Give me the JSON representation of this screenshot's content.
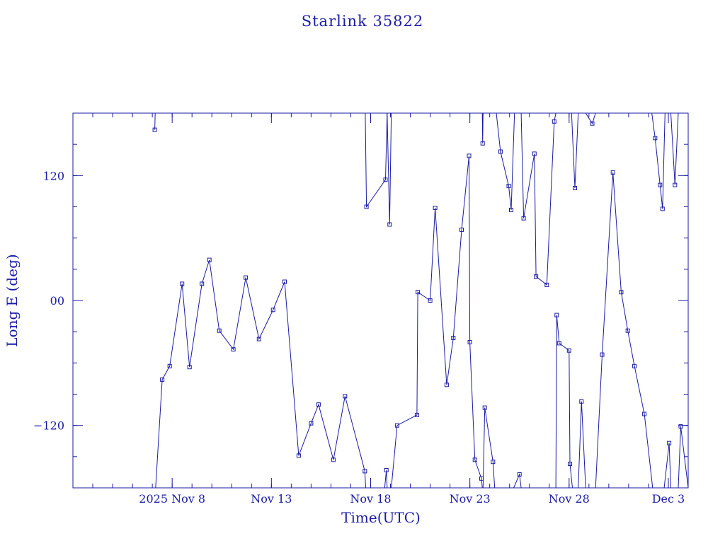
{
  "chart_data": {
    "type": "line",
    "title": "Starlink 35822",
    "xlabel": "Time(UTC)",
    "ylabel": "Long E (deg)",
    "xlim": [
      "2025-11-03T00:00",
      "2025-12-04T00:00"
    ],
    "ylim": [
      -180,
      180
    ],
    "x_ticks": [
      {
        "t": "2025-11-08T00:00",
        "label": "2025 Nov  8"
      },
      {
        "t": "2025-11-13T00:00",
        "label": "Nov 13"
      },
      {
        "t": "2025-11-18T00:00",
        "label": "Nov 18"
      },
      {
        "t": "2025-11-23T00:00",
        "label": "Nov 23"
      },
      {
        "t": "2025-11-28T00:00",
        "label": "Nov 28"
      },
      {
        "t": "2025-12-03T00:00",
        "label": "Dec  3"
      }
    ],
    "y_ticks": [
      {
        "value": 120,
        "label": "120"
      },
      {
        "value": 0,
        "label": "00"
      },
      {
        "value": -120,
        "label": "−120"
      }
    ],
    "color": "#1a1aa6",
    "grid": false,
    "series": [
      {
        "points": [
          [
            "2025-11-07T03:00",
            164
          ],
          [
            "2025-11-07T03:30",
            180
          ]
        ]
      },
      {
        "points": [
          [
            "2025-11-07T04:00",
            -180
          ],
          [
            "2025-11-07T12:00",
            -76
          ],
          [
            "2025-11-07T21:00",
            -63
          ],
          [
            "2025-11-08T12:00",
            16
          ],
          [
            "2025-11-08T21:00",
            -64
          ],
          [
            "2025-11-09T12:00",
            16
          ],
          [
            "2025-11-09T21:00",
            39
          ],
          [
            "2025-11-10T09:00",
            -29
          ],
          [
            "2025-11-11T02:00",
            -47
          ],
          [
            "2025-11-11T17:00",
            22
          ],
          [
            "2025-11-12T09:00",
            -37
          ],
          [
            "2025-11-13T02:00",
            -9
          ],
          [
            "2025-11-13T16:00",
            18
          ],
          [
            "2025-11-14T09:00",
            -149
          ],
          [
            "2025-11-15T00:00",
            -118
          ],
          [
            "2025-11-15T09:00",
            -100
          ],
          [
            "2025-11-16T03:00",
            -153
          ],
          [
            "2025-11-16T17:00",
            -92
          ],
          [
            "2025-11-17T17:00",
            -164
          ],
          [
            "2025-11-17T18:00",
            -180
          ]
        ]
      },
      {
        "points": [
          [
            "2025-11-17T17:30",
            180
          ],
          [
            "2025-11-17T19:00",
            90
          ],
          [
            "2025-11-18T18:00",
            116
          ],
          [
            "2025-11-18T20:00",
            180
          ]
        ]
      },
      {
        "points": [
          [
            "2025-11-18T17:00",
            -180
          ],
          [
            "2025-11-18T19:00",
            -163
          ],
          [
            "2025-11-18T20:00",
            -180
          ]
        ]
      },
      {
        "points": [
          [
            "2025-11-18T20:00",
            180
          ],
          [
            "2025-11-18T23:00",
            73
          ],
          [
            "2025-11-19T01:00",
            180
          ]
        ]
      },
      {
        "points": [
          [
            "2025-11-19T01:00",
            -180
          ],
          [
            "2025-11-19T08:00",
            -120
          ],
          [
            "2025-11-20T08:00",
            -110
          ],
          [
            "2025-11-20T09:00",
            8
          ],
          [
            "2025-11-21T00:00",
            0
          ],
          [
            "2025-11-21T06:00",
            89
          ],
          [
            "2025-11-21T20:00",
            -81
          ],
          [
            "2025-11-22T04:00",
            -36
          ],
          [
            "2025-11-22T14:00",
            68
          ],
          [
            "2025-11-22T23:00",
            139
          ],
          [
            "2025-11-23T00:00",
            -40
          ],
          [
            "2025-11-23T06:00",
            -153
          ],
          [
            "2025-11-23T14:00",
            -171
          ],
          [
            "2025-11-23T15:00",
            -180
          ]
        ]
      },
      {
        "points": [
          [
            "2025-11-23T15:00",
            180
          ],
          [
            "2025-11-23T15:30",
            151
          ],
          [
            "2025-11-23T16:00",
            180
          ]
        ]
      },
      {
        "points": [
          [
            "2025-11-23T16:00",
            -180
          ],
          [
            "2025-11-23T18:00",
            -103
          ],
          [
            "2025-11-24T04:00",
            -155
          ],
          [
            "2025-11-24T06:00",
            -180
          ]
        ]
      },
      {
        "points": [
          [
            "2025-11-24T08:00",
            180
          ],
          [
            "2025-11-24T13:00",
            143
          ],
          [
            "2025-11-24T23:00",
            110
          ],
          [
            "2025-11-25T02:00",
            87
          ],
          [
            "2025-11-25T06:00",
            180
          ]
        ]
      },
      {
        "points": [
          [
            "2025-11-25T05:00",
            -180
          ],
          [
            "2025-11-25T12:00",
            -167
          ],
          [
            "2025-11-25T14:00",
            -180
          ]
        ]
      },
      {
        "points": [
          [
            "2025-11-25T14:00",
            180
          ],
          [
            "2025-11-25T17:00",
            79
          ],
          [
            "2025-11-26T06:00",
            141
          ],
          [
            "2025-11-26T08:00",
            23
          ],
          [
            "2025-11-26T21:00",
            15
          ],
          [
            "2025-11-27T06:00",
            172
          ],
          [
            "2025-11-27T08:00",
            180
          ]
        ]
      },
      {
        "points": [
          [
            "2025-11-27T08:00",
            -180
          ],
          [
            "2025-11-27T09:00",
            -14
          ],
          [
            "2025-11-27T12:00",
            -41
          ],
          [
            "2025-11-28T00:00",
            -48
          ],
          [
            "2025-11-28T01:00",
            -157
          ],
          [
            "2025-11-28T04:00",
            -180
          ]
        ]
      },
      {
        "points": [
          [
            "2025-11-28T03:00",
            180
          ],
          [
            "2025-11-28T07:00",
            108
          ],
          [
            "2025-11-28T11:00",
            180
          ]
        ]
      },
      {
        "points": [
          [
            "2025-11-28T11:00",
            -180
          ],
          [
            "2025-11-28T15:00",
            -97
          ],
          [
            "2025-11-28T20:00",
            -180
          ]
        ]
      },
      {
        "points": [
          [
            "2025-11-28T20:00",
            180
          ],
          [
            "2025-11-29T04:00",
            170
          ],
          [
            "2025-11-29T08:00",
            180
          ]
        ]
      },
      {
        "points": [
          [
            "2025-11-29T08:00",
            -180
          ],
          [
            "2025-11-29T16:00",
            -52
          ],
          [
            "2025-11-30T05:00",
            123
          ],
          [
            "2025-11-30T15:00",
            8
          ],
          [
            "2025-11-30T23:00",
            -29
          ],
          [
            "2025-12-01T07:00",
            -63
          ],
          [
            "2025-12-01T19:00",
            -109
          ],
          [
            "2025-12-02T05:00",
            -180
          ]
        ]
      },
      {
        "points": [
          [
            "2025-12-02T04:00",
            180
          ],
          [
            "2025-12-02T08:00",
            156
          ],
          [
            "2025-12-02T14:00",
            111
          ],
          [
            "2025-12-02T17:00",
            88
          ],
          [
            "2025-12-02T20:00",
            180
          ]
        ]
      },
      {
        "points": [
          [
            "2025-12-02T19:00",
            -180
          ],
          [
            "2025-12-03T01:00",
            -137
          ],
          [
            "2025-12-03T03:00",
            -180
          ]
        ]
      },
      {
        "points": [
          [
            "2025-12-03T03:00",
            180
          ],
          [
            "2025-12-03T08:00",
            111
          ],
          [
            "2025-12-03T12:00",
            180
          ]
        ]
      },
      {
        "points": [
          [
            "2025-12-03T12:00",
            -180
          ],
          [
            "2025-12-03T15:00",
            -121
          ],
          [
            "2025-12-04T00:00",
            -180
          ]
        ]
      }
    ]
  }
}
